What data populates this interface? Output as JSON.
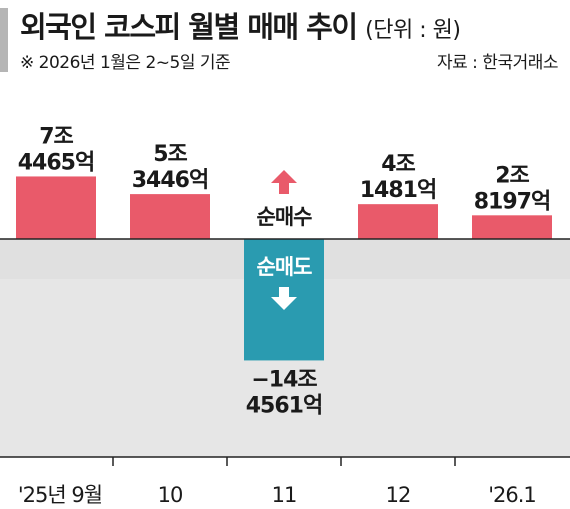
{
  "header": {
    "title": "외국인 코스피 월별 매매 추이",
    "unit": "(단위 : 원)",
    "note": "※ 2026년 1월은 2~5일 기준",
    "source": "자료 : 한국거래소"
  },
  "annotations": {
    "net_buy": "순매수",
    "net_sell": "순매도"
  },
  "colors": {
    "positive": "#e95a6a",
    "negative": "#2a9bb0",
    "arrow_up": "#e95a6a",
    "negative_band": "#e6e6e6",
    "axis": "#222222"
  },
  "chart_data": {
    "type": "bar",
    "title": "외국인 코스피 월별 매매 추이",
    "categories": [
      "'25년 9월",
      "10",
      "11",
      "12",
      "'26.1"
    ],
    "values": [
      74465,
      53446,
      -144561,
      41481,
      28197
    ],
    "value_unit": "억 원",
    "data_labels": [
      [
        "7조",
        "4465억"
      ],
      [
        "5조",
        "3446억"
      ],
      [
        "−14조",
        "4561억"
      ],
      [
        "4조",
        "1481억"
      ],
      [
        "2조",
        "8197억"
      ]
    ],
    "xlabel": "",
    "ylabel": "",
    "grid": false
  }
}
